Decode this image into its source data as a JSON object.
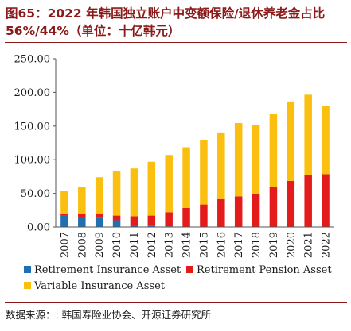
{
  "header": {
    "title": "图65：2022 年韩国独立账户中变额保险/退休养老金占比 56%/44%（单位：十亿韩元）"
  },
  "footer": {
    "source": "数据来源：: 韩国寿险业协会、开源证券研究所"
  },
  "chart_data": {
    "type": "bar",
    "stacked": true,
    "categories": [
      "2007",
      "2008",
      "2009",
      "2010",
      "2011",
      "2012",
      "2013",
      "2014",
      "2015",
      "2016",
      "2017",
      "2018",
      "2019",
      "2020",
      "2021",
      "2022"
    ],
    "series": [
      {
        "name": "Retirement Insurance Asset",
        "color": "#1f6fb2",
        "values": [
          17,
          15,
          14,
          10,
          3,
          2,
          1,
          0.5,
          0.5,
          0.5,
          0.5,
          0.5,
          0.5,
          0.5,
          0.5,
          0.5
        ]
      },
      {
        "name": "Retirement Pension Asset",
        "color": "#e41b1b",
        "values": [
          3,
          4,
          6,
          7,
          13,
          15,
          21,
          28,
          33,
          41,
          45,
          49,
          59,
          68,
          77,
          78
        ]
      },
      {
        "name": "Variable Insurance Asset",
        "color": "#fbbf0f",
        "values": [
          34,
          40,
          54,
          66,
          71,
          80,
          85,
          90,
          96,
          99,
          109,
          102,
          109,
          118,
          119,
          101
        ]
      }
    ],
    "yticks": [
      "0.00",
      "50.00",
      "100.00",
      "150.00",
      "200.00",
      "250.00"
    ],
    "ylim": [
      0,
      250
    ],
    "legend_position": "bottom",
    "grid": false
  }
}
